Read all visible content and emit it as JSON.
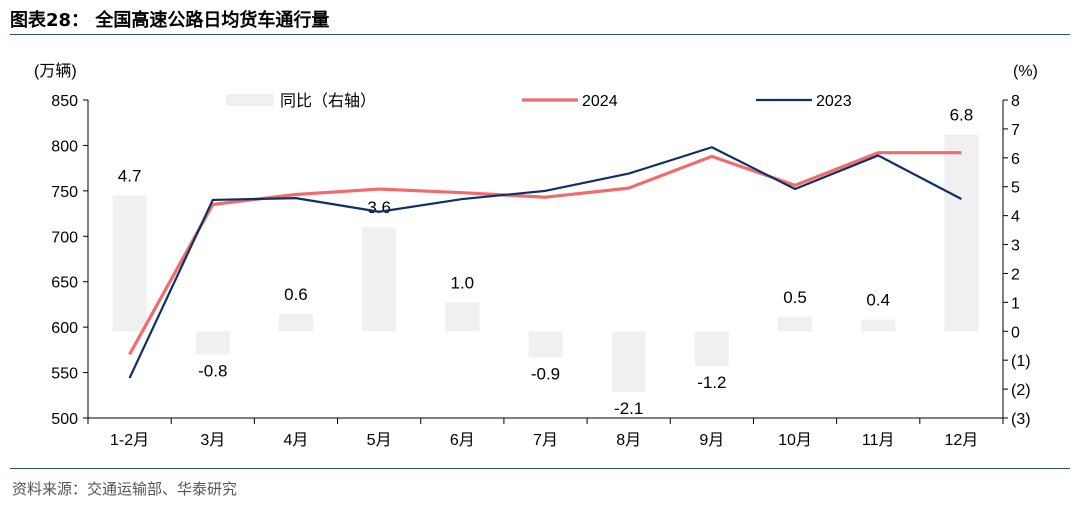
{
  "header": {
    "title": "图表28：  全国高速公路日均货车通行量"
  },
  "footer": {
    "source": "资料来源：交通运输部、华泰研究"
  },
  "chart_data": {
    "type": "bar+line",
    "categories": [
      "1-2月",
      "3月",
      "4月",
      "5月",
      "6月",
      "7月",
      "8月",
      "9月",
      "10月",
      "11月",
      "12月"
    ],
    "bar_series": {
      "name": "同比（右轴）",
      "axis": "right",
      "color": "#f0f0f0",
      "values": [
        4.7,
        -0.8,
        0.6,
        3.6,
        1.0,
        -0.9,
        -2.1,
        -1.2,
        0.5,
        0.4,
        6.8
      ],
      "labels": [
        "4.7",
        "-0.8",
        "0.6",
        "3.6",
        "1.0",
        "-0.9",
        "-2.1",
        "-1.2",
        "0.5",
        "0.4",
        "6.8"
      ]
    },
    "series": [
      {
        "name": "2024",
        "axis": "left",
        "color": "#f26b6b",
        "values": [
          570,
          735,
          746,
          752,
          748,
          743,
          753,
          788,
          756,
          792,
          792
        ]
      },
      {
        "name": "2023",
        "axis": "left",
        "color": "#0d2f6b",
        "values": [
          544,
          740,
          742,
          727,
          741,
          750,
          769,
          798,
          752,
          789,
          741
        ]
      }
    ],
    "y_left": {
      "unit": "(万辆)",
      "min": 500,
      "max": 850,
      "step": 50,
      "ticks": [
        "500",
        "550",
        "600",
        "650",
        "700",
        "750",
        "800",
        "850"
      ]
    },
    "y_right": {
      "unit": "(%)",
      "min": -3,
      "max": 8,
      "step": 1,
      "ticks": [
        "(3)",
        "(2)",
        "(1)",
        "0",
        "1",
        "2",
        "3",
        "4",
        "5",
        "6",
        "7",
        "8"
      ]
    },
    "legend": {
      "placement": "top",
      "items": [
        "同比（右轴）",
        "2024",
        "2023"
      ]
    }
  }
}
